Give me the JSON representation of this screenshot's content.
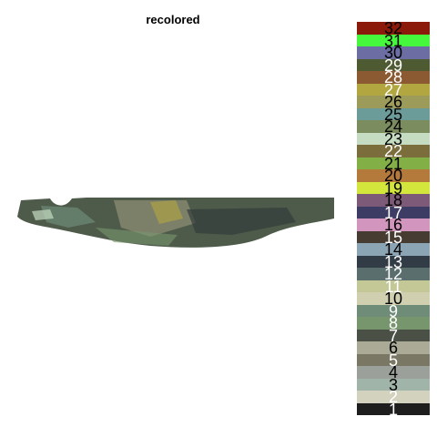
{
  "title": "recolored",
  "legend": [
    {
      "label": "32",
      "color": "#8b1a0a",
      "text_color": "#000000"
    },
    {
      "label": "31",
      "color": "#46f83c",
      "text_color": "#000000"
    },
    {
      "label": "30",
      "color": "#6b6da3",
      "text_color": "#000000"
    },
    {
      "label": "29",
      "color": "#4e5a32",
      "text_color": "#ffffff"
    },
    {
      "label": "28",
      "color": "#8c5a32",
      "text_color": "#ffffff"
    },
    {
      "label": "27",
      "color": "#b2a640",
      "text_color": "#ffffff"
    },
    {
      "label": "26",
      "color": "#9c9b5a",
      "text_color": "#000000"
    },
    {
      "label": "25",
      "color": "#6b9c99",
      "text_color": "#000000"
    },
    {
      "label": "24",
      "color": "#7b8c5e",
      "text_color": "#000000"
    },
    {
      "label": "23",
      "color": "#c5dcc2",
      "text_color": "#000000"
    },
    {
      "label": "22",
      "color": "#7c6e3c",
      "text_color": "#ffffff"
    },
    {
      "label": "21",
      "color": "#82b046",
      "text_color": "#000000"
    },
    {
      "label": "20",
      "color": "#b47a3c",
      "text_color": "#000000"
    },
    {
      "label": "19",
      "color": "#d2e63c",
      "text_color": "#000000"
    },
    {
      "label": "18",
      "color": "#7c5a78",
      "text_color": "#000000"
    },
    {
      "label": "17",
      "color": "#3c3c64",
      "text_color": "#ffffff"
    },
    {
      "label": "16",
      "color": "#d296be",
      "text_color": "#000000"
    },
    {
      "label": "15",
      "color": "#463c32",
      "text_color": "#ffffff"
    },
    {
      "label": "14",
      "color": "#8ca5b4",
      "text_color": "#000000"
    },
    {
      "label": "13",
      "color": "#323c46",
      "text_color": "#ffffff"
    },
    {
      "label": "12",
      "color": "#5a6e6e",
      "text_color": "#ffffff"
    },
    {
      "label": "11",
      "color": "#c3c896",
      "text_color": "#ffffff"
    },
    {
      "label": "10",
      "color": "#d0d0b0",
      "text_color": "#000000"
    },
    {
      "label": "9",
      "color": "#6e8c78",
      "text_color": "#ffffff"
    },
    {
      "label": "8",
      "color": "#78966e",
      "text_color": "#ffffff"
    },
    {
      "label": "7",
      "color": "#4b5046",
      "text_color": "#ffffff"
    },
    {
      "label": "6",
      "color": "#aaaa96",
      "text_color": "#000000"
    },
    {
      "label": "5",
      "color": "#7a7864",
      "text_color": "#ffffff"
    },
    {
      "label": "4",
      "color": "#9ba09b",
      "text_color": "#000000"
    },
    {
      "label": "3",
      "color": "#a0b4aa",
      "text_color": "#000000"
    },
    {
      "label": "2",
      "color": "#d2d2be",
      "text_color": "#ffffff"
    },
    {
      "label": "1",
      "color": "#1e1e1e",
      "text_color": "#ffffff"
    }
  ]
}
